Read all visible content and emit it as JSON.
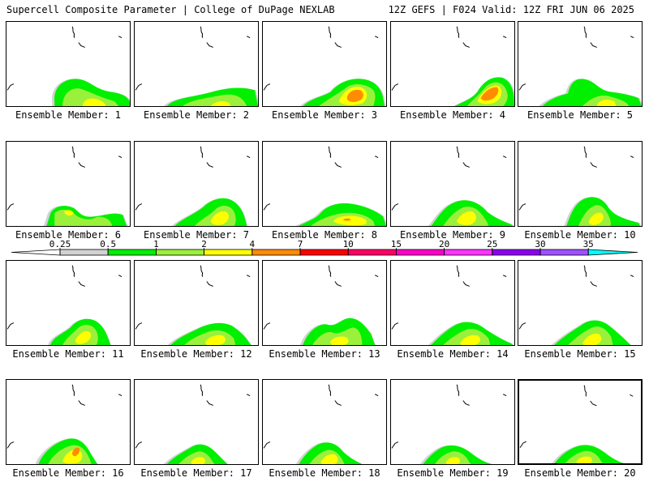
{
  "header": {
    "title": "Supercell Composite Parameter | College of DuPage NEXLAB",
    "run": "12Z GEFS | F024 Valid: 12Z FRI JUN 06 2025"
  },
  "legend": {
    "ticks": [
      "0.25",
      "0.5",
      "1",
      "2",
      "4",
      "7",
      "10",
      "15",
      "20",
      "25",
      "30",
      "35"
    ],
    "colors": [
      "#d2d2d2",
      "#00f000",
      "#9bf03c",
      "#ffff00",
      "#ff8c00",
      "#ff0000",
      "#ff0066",
      "#ff00cc",
      "#ff33ff",
      "#8c00f0",
      "#a050ff",
      "#00ffff"
    ]
  },
  "selected_member": 20,
  "members": [
    {
      "label": "Ensemble Member: 1"
    },
    {
      "label": "Ensemble Member: 2"
    },
    {
      "label": "Ensemble Member: 3"
    },
    {
      "label": "Ensemble Member: 4"
    },
    {
      "label": "Ensemble Member: 5"
    },
    {
      "label": "Ensemble Member: 6"
    },
    {
      "label": "Ensemble Member: 7"
    },
    {
      "label": "Ensemble Member: 8"
    },
    {
      "label": "Ensemble Member: 9"
    },
    {
      "label": "Ensemble Member: 10"
    },
    {
      "label": "Ensemble Member: 11"
    },
    {
      "label": "Ensemble Member: 12"
    },
    {
      "label": "Ensemble Member: 13"
    },
    {
      "label": "Ensemble Member: 14"
    },
    {
      "label": "Ensemble Member: 15"
    },
    {
      "label": "Ensemble Member: 16"
    },
    {
      "label": "Ensemble Member: 17"
    },
    {
      "label": "Ensemble Member: 18"
    },
    {
      "label": "Ensemble Member: 19"
    },
    {
      "label": "Ensemble Member: 20"
    }
  ]
}
